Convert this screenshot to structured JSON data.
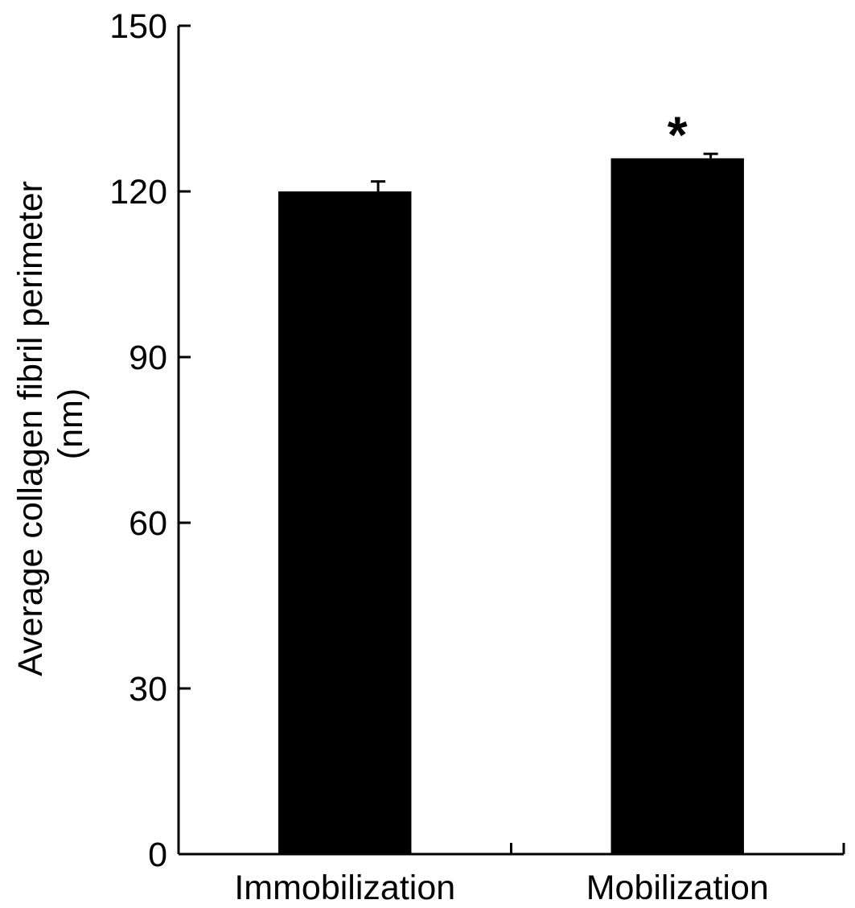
{
  "chart_data": {
    "type": "bar",
    "title": "",
    "xlabel": "",
    "ylabel_lines": [
      "Average collagen fibril perimeter",
      "(nm)"
    ],
    "categories": [
      "Immobilization",
      "Mobilization"
    ],
    "values": [
      120,
      126
    ],
    "error_upper": [
      1.8,
      0.8
    ],
    "annotations": [
      "",
      "*"
    ],
    "ylim": [
      0,
      150
    ],
    "yticks": [
      0,
      30,
      60,
      90,
      120,
      150
    ],
    "grid": false,
    "legend": "none",
    "bar_color": "#000000"
  }
}
